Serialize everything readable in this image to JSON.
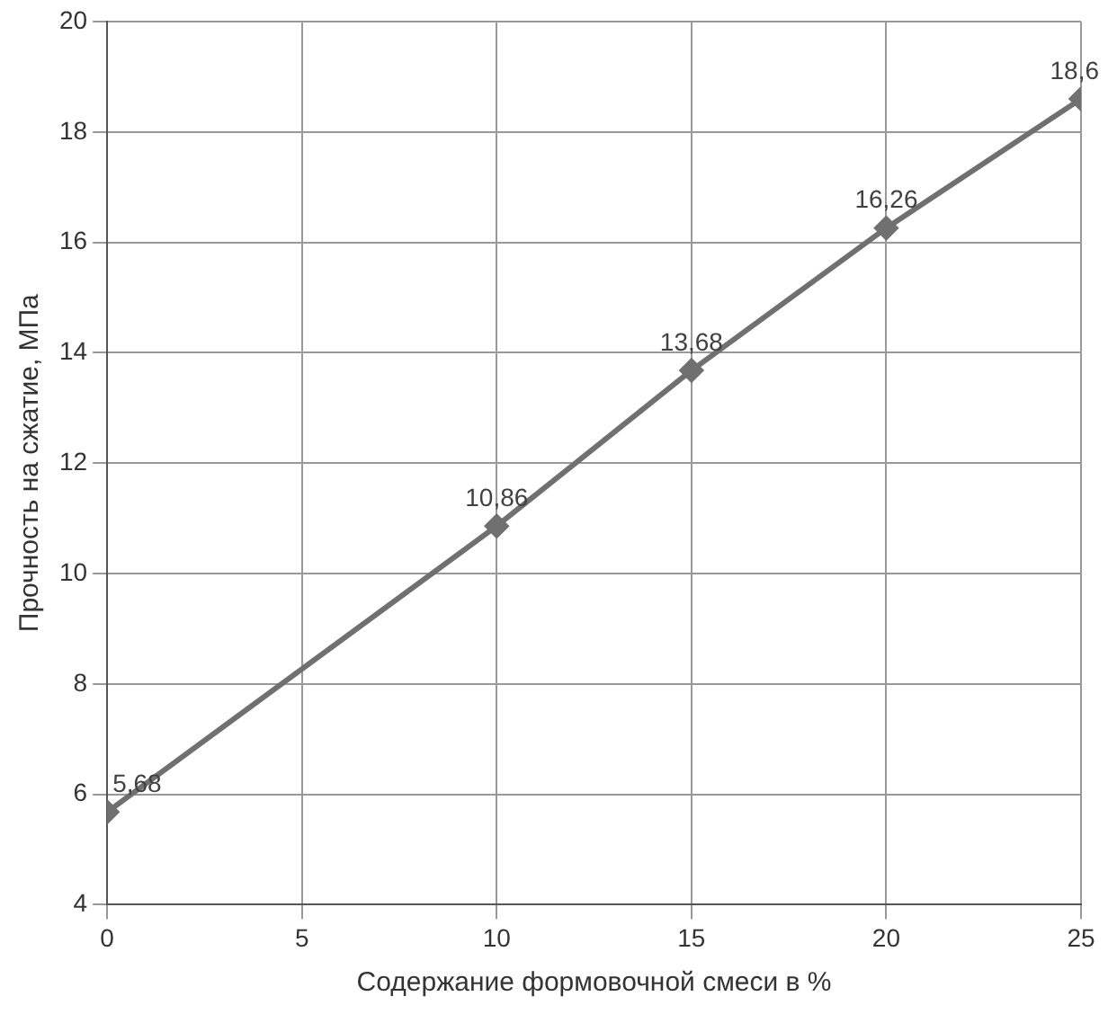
{
  "chart_data": {
    "type": "line",
    "xlabel": "Содержание формовочной смеси в %",
    "ylabel": "Прочность на сжатие, МПа",
    "x": [
      0,
      10,
      15,
      20,
      25
    ],
    "series": [
      {
        "color": "#707070",
        "values": [
          5.68,
          10.86,
          13.68,
          16.26,
          18.6
        ],
        "value_labels": [
          "5,68",
          "10,86",
          "13,68",
          "16,26",
          "18,6"
        ]
      }
    ],
    "xlim": [
      0,
      25
    ],
    "xticks": [
      0,
      5,
      10,
      15,
      20,
      25
    ],
    "ylim": [
      4,
      20
    ],
    "yticks": [
      4,
      6,
      8,
      10,
      12,
      14,
      16,
      18,
      20
    ],
    "grid": true,
    "legend": false,
    "marker": "diamond",
    "line_style": "solid"
  }
}
